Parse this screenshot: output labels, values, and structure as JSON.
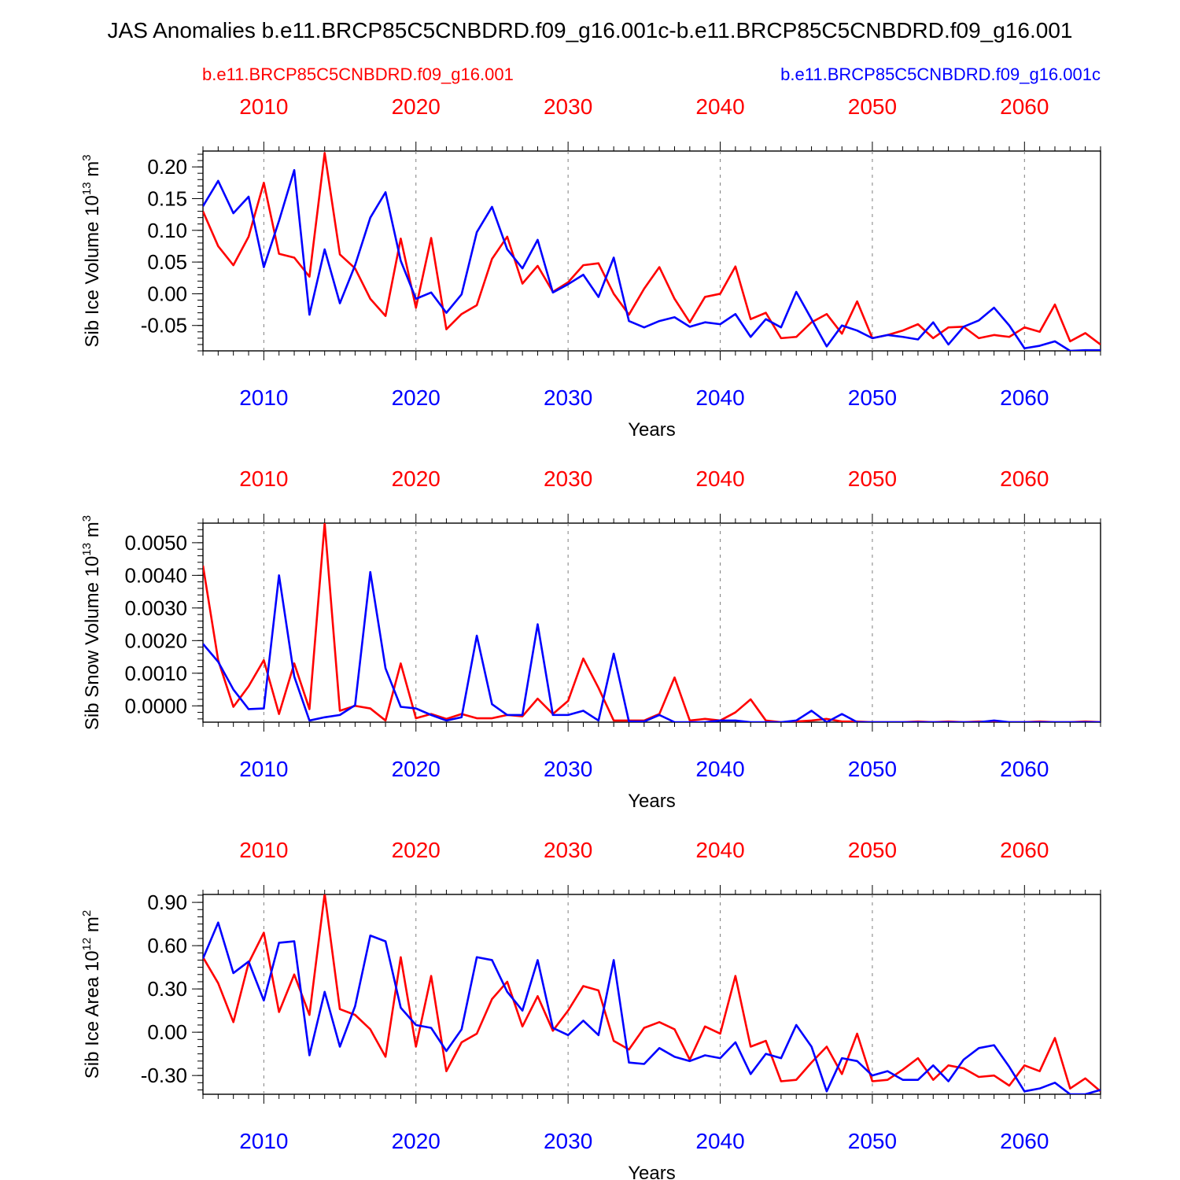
{
  "title": "JAS Anomalies b.e11.BRCP85C5CNBDRD.f09_g16.001c-b.e11.BRCP85C5CNBDRD.f09_g16.001",
  "legend": {
    "red_label": "b.e11.BRCP85C5CNBDRD.f09_g16.001",
    "blue_label": "b.e11.BRCP85C5CNBDRD.f09_g16.001c"
  },
  "colors": {
    "red": "#ff0000",
    "blue": "#0000ff",
    "axis": "#000000",
    "grid": "#7f7f7f"
  },
  "chart_data": [
    {
      "type": "line",
      "ylabel": "Sib Ice Volume 10",
      "ylabel_exp": "13",
      "ylabel_unit": " m",
      "ylabel_unit_exp": "3",
      "xlabel": "Years",
      "xlim": [
        2006,
        2065
      ],
      "ylim": [
        -0.09,
        0.225
      ],
      "yticks": [
        0.2,
        0.15,
        0.1,
        0.05,
        0.0,
        -0.05
      ],
      "ytick_labels": [
        "0.20",
        "0.15",
        "0.10",
        "0.05",
        "0.00",
        "-0.05"
      ],
      "yminor_step": 0.01,
      "xticks": [
        2010,
        2020,
        2030,
        2040,
        2050,
        2060
      ],
      "xtick_labels": [
        "2010",
        "2020",
        "2030",
        "2040",
        "2050",
        "2060"
      ],
      "x_start": 2006,
      "series": [
        {
          "name": "b.e11.BRCP85C5CNBDRD.f09_g16.001",
          "color": "red",
          "values": [
            0.13,
            0.075,
            0.045,
            0.09,
            0.175,
            0.063,
            0.057,
            0.027,
            0.222,
            0.062,
            0.04,
            -0.008,
            -0.035,
            0.087,
            -0.022,
            0.088,
            -0.056,
            -0.032,
            -0.018,
            0.055,
            0.09,
            0.016,
            0.044,
            0.003,
            0.018,
            0.045,
            0.048,
            0.0,
            -0.033,
            0.008,
            0.042,
            -0.008,
            -0.045,
            -0.005,
            0.0,
            0.043,
            -0.04,
            -0.03,
            -0.07,
            -0.068,
            -0.045,
            -0.032,
            -0.063,
            -0.012,
            -0.07,
            -0.065,
            -0.058,
            -0.048,
            -0.07,
            -0.053,
            -0.052,
            -0.07,
            -0.065,
            -0.068,
            -0.053,
            -0.06,
            -0.017,
            -0.075,
            -0.062,
            -0.08
          ]
        },
        {
          "name": "b.e11.BRCP85C5CNBDRD.f09_g16.001c",
          "color": "blue",
          "values": [
            0.138,
            0.178,
            0.127,
            0.153,
            0.042,
            0.115,
            0.195,
            -0.033,
            0.07,
            -0.015,
            0.045,
            0.12,
            0.16,
            0.052,
            -0.008,
            0.002,
            -0.03,
            -0.001,
            0.097,
            0.137,
            0.07,
            0.04,
            0.085,
            0.002,
            0.015,
            0.03,
            -0.005,
            0.057,
            -0.043,
            -0.053,
            -0.043,
            -0.037,
            -0.052,
            -0.045,
            -0.048,
            -0.032,
            -0.068,
            -0.04,
            -0.053,
            0.003,
            -0.04,
            -0.083,
            -0.05,
            -0.058,
            -0.07,
            -0.065,
            -0.068,
            -0.072,
            -0.045,
            -0.08,
            -0.052,
            -0.042,
            -0.022,
            -0.05,
            -0.086,
            -0.082,
            -0.075,
            -0.09,
            -0.089,
            -0.089
          ]
        }
      ]
    },
    {
      "type": "line",
      "ylabel": "Sib Snow Volume 10",
      "ylabel_exp": "13",
      "ylabel_unit": " m",
      "ylabel_unit_exp": "3",
      "xlabel": "Years",
      "xlim": [
        2006,
        2065
      ],
      "ylim": [
        -0.0005,
        0.0056
      ],
      "yticks": [
        0.005,
        0.004,
        0.003,
        0.002,
        0.001,
        0.0
      ],
      "ytick_labels": [
        "0.0050",
        "0.0040",
        "0.0030",
        "0.0020",
        "0.0010",
        "0.0000"
      ],
      "yminor_step": 0.0002,
      "xticks": [
        2010,
        2020,
        2030,
        2040,
        2050,
        2060
      ],
      "xtick_labels": [
        "2010",
        "2020",
        "2030",
        "2040",
        "2050",
        "2060"
      ],
      "x_start": 2006,
      "series": [
        {
          "name": "b.e11.BRCP85C5CNBDRD.f09_g16.001",
          "color": "red",
          "values": [
            0.0043,
            0.0014,
            -3e-05,
            0.0006,
            0.0014,
            -0.00025,
            0.0013,
            -0.0001,
            0.0056,
            -0.00015,
            0.0,
            -8e-05,
            -0.00045,
            0.0013,
            -0.00038,
            -0.00025,
            -0.0004,
            -0.00025,
            -0.00038,
            -0.00038,
            -0.00028,
            -0.00032,
            0.00022,
            -0.00025,
            0.00015,
            0.00145,
            0.00055,
            -0.00045,
            -0.00045,
            -0.00045,
            -0.00025,
            0.00087,
            -0.00045,
            -0.0004,
            -0.00045,
            -0.0002,
            0.0002,
            -0.00045,
            -0.0005,
            -0.00048,
            -0.00045,
            -0.0004,
            -0.00048,
            -0.00048,
            -0.0005,
            -0.0005,
            -0.0005,
            -0.00048,
            -0.0005,
            -0.00048,
            -0.0005,
            -0.00048,
            -0.0005,
            -0.0005,
            -0.0005,
            -0.00048,
            -0.0005,
            -0.0005,
            -0.00048,
            -0.0005
          ]
        },
        {
          "name": "b.e11.BRCP85C5CNBDRD.f09_g16.001c",
          "color": "blue",
          "values": [
            0.0019,
            0.00135,
            0.0005,
            -0.0001,
            -8e-05,
            0.004,
            0.0009,
            -0.00045,
            -0.00035,
            -0.00028,
            2e-05,
            0.0041,
            0.00115,
            -3e-05,
            -8e-05,
            -0.00028,
            -0.00045,
            -0.00035,
            0.00215,
            5e-05,
            -0.00028,
            -0.00028,
            0.0025,
            -0.00028,
            -0.00028,
            -0.00015,
            -0.00045,
            0.0016,
            -0.00048,
            -0.00048,
            -0.00028,
            -0.0005,
            -0.0005,
            -0.0005,
            -0.00045,
            -0.00045,
            -0.0005,
            -0.0005,
            -0.0005,
            -0.00045,
            -0.00015,
            -0.0005,
            -0.00025,
            -0.0005,
            -0.0005,
            -0.0005,
            -0.0005,
            -0.0005,
            -0.0005,
            -0.0005,
            -0.0005,
            -0.0005,
            -0.00045,
            -0.0005,
            -0.0005,
            -0.0005,
            -0.0005,
            -0.0005,
            -0.0005,
            -0.0005
          ]
        }
      ]
    },
    {
      "type": "line",
      "ylabel": "Sib Ice Area 10",
      "ylabel_exp": "12",
      "ylabel_unit": " m",
      "ylabel_unit_exp": "2",
      "xlabel": "Years",
      "xlim": [
        2006,
        2065
      ],
      "ylim": [
        -0.43,
        0.955
      ],
      "yticks": [
        0.9,
        0.6,
        0.3,
        0.0,
        -0.3
      ],
      "ytick_labels": [
        "0.90",
        "0.60",
        "0.30",
        "0.00",
        "-0.30"
      ],
      "yminor_step": 0.05,
      "xticks": [
        2010,
        2020,
        2030,
        2040,
        2050,
        2060
      ],
      "xtick_labels": [
        "2010",
        "2020",
        "2030",
        "2040",
        "2050",
        "2060"
      ],
      "x_start": 2006,
      "series": [
        {
          "name": "b.e11.BRCP85C5CNBDRD.f09_g16.001",
          "color": "red",
          "values": [
            0.52,
            0.34,
            0.07,
            0.48,
            0.69,
            0.14,
            0.4,
            0.12,
            0.96,
            0.16,
            0.12,
            0.02,
            -0.17,
            0.52,
            -0.1,
            0.39,
            -0.27,
            -0.07,
            -0.01,
            0.23,
            0.35,
            0.04,
            0.25,
            0.01,
            0.15,
            0.32,
            0.29,
            -0.06,
            -0.12,
            0.03,
            0.07,
            0.02,
            -0.19,
            0.04,
            -0.01,
            0.39,
            -0.1,
            -0.06,
            -0.34,
            -0.33,
            -0.21,
            -0.1,
            -0.29,
            -0.01,
            -0.34,
            -0.33,
            -0.26,
            -0.18,
            -0.33,
            -0.23,
            -0.25,
            -0.31,
            -0.3,
            -0.37,
            -0.23,
            -0.27,
            -0.04,
            -0.39,
            -0.32,
            -0.41
          ]
        },
        {
          "name": "b.e11.BRCP85C5CNBDRD.f09_g16.001c",
          "color": "blue",
          "values": [
            0.51,
            0.76,
            0.41,
            0.49,
            0.22,
            0.62,
            0.63,
            -0.16,
            0.28,
            -0.1,
            0.18,
            0.67,
            0.63,
            0.17,
            0.05,
            0.03,
            -0.13,
            0.02,
            0.52,
            0.5,
            0.28,
            0.15,
            0.5,
            0.03,
            -0.02,
            0.08,
            -0.02,
            0.5,
            -0.21,
            -0.22,
            -0.11,
            -0.17,
            -0.2,
            -0.16,
            -0.18,
            -0.07,
            -0.29,
            -0.15,
            -0.18,
            0.05,
            -0.1,
            -0.41,
            -0.18,
            -0.2,
            -0.3,
            -0.27,
            -0.33,
            -0.33,
            -0.23,
            -0.34,
            -0.19,
            -0.11,
            -0.09,
            -0.24,
            -0.41,
            -0.39,
            -0.35,
            -0.43,
            -0.43,
            -0.4
          ]
        }
      ]
    }
  ]
}
